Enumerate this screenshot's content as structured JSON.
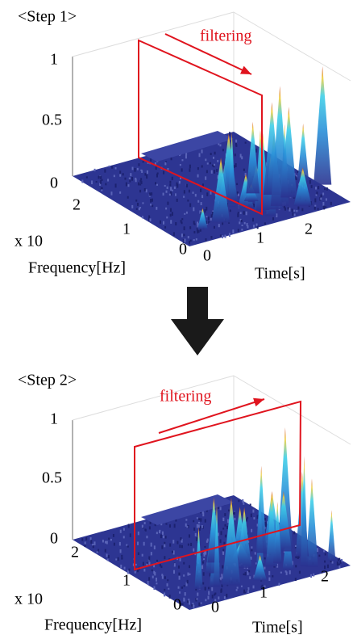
{
  "panels": [
    {
      "step_label": "<Step 1>",
      "annotation": "filtering",
      "z_ticks": [
        "1",
        "0.5",
        "0"
      ],
      "frequency_ticks": [
        "2",
        "1",
        "0"
      ],
      "time_ticks": [
        "0",
        "1",
        "2"
      ],
      "frequency_scale": "x 10",
      "frequency_label": "Frequency[Hz]",
      "time_label": "Time[s]"
    },
    {
      "step_label": "<Step 2>",
      "annotation": "filtering",
      "z_ticks": [
        "1",
        "0.5",
        "0"
      ],
      "frequency_ticks": [
        "2",
        "1",
        "0"
      ],
      "time_ticks": [
        "0",
        "1",
        "2"
      ],
      "frequency_scale": "x 10",
      "frequency_label": "Frequency[Hz]",
      "time_label": "Time[s]"
    }
  ]
}
